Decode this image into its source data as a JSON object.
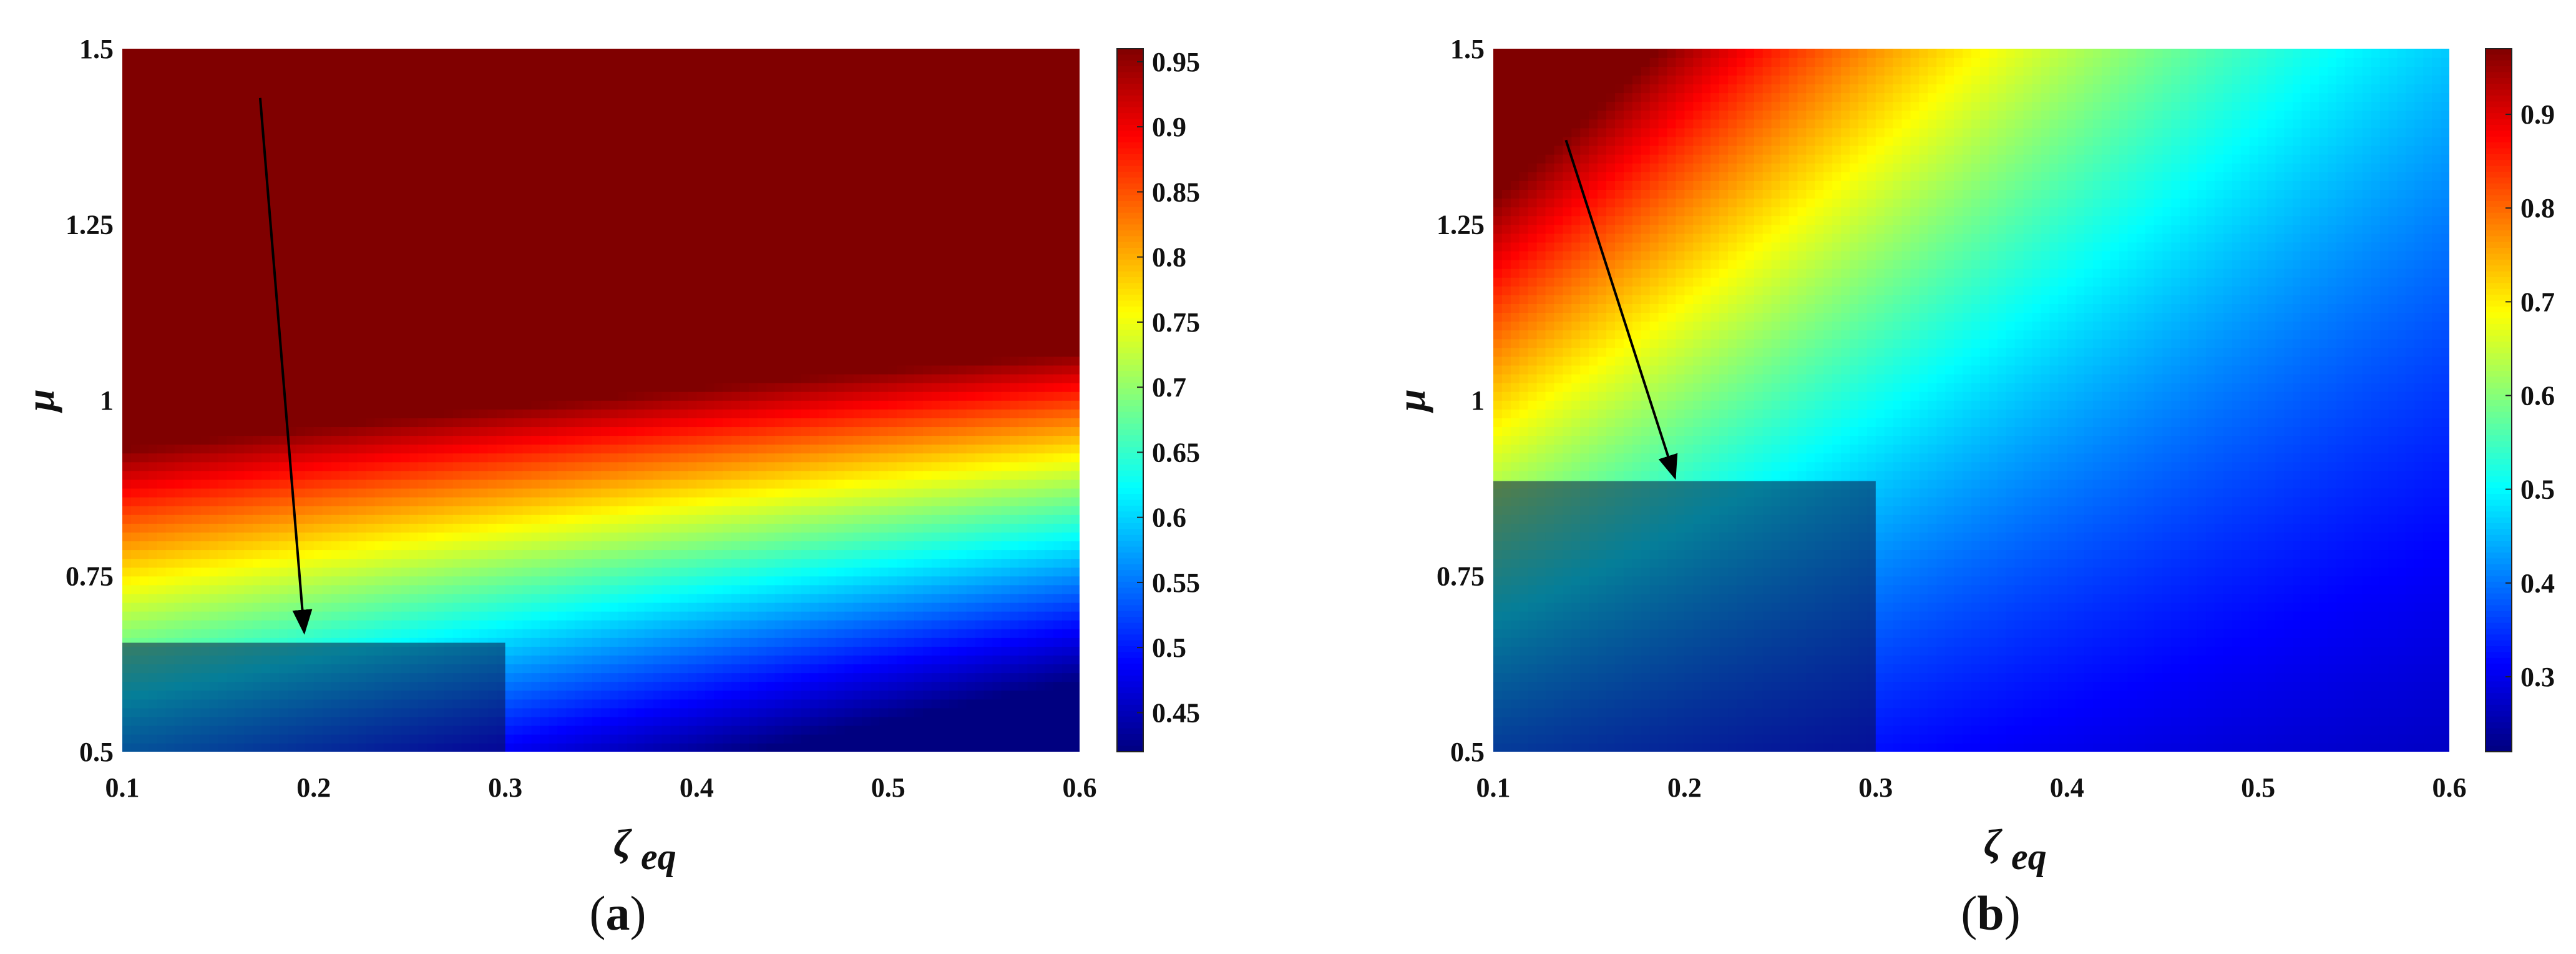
{
  "chart_data": [
    {
      "type": "heatmap",
      "panel_label": "a",
      "x_ticks": [
        "0.1",
        "0.2",
        "0.3",
        "0.4",
        "0.5",
        "0.6"
      ],
      "y_ticks": [
        "0.5",
        "0.75",
        "1",
        "1.25",
        "1.5"
      ],
      "xlim": [
        0.1,
        0.6
      ],
      "ylim": [
        0.5,
        1.5
      ],
      "xlabel_main": "ζ",
      "xlabel_sub": "eq",
      "ylabel": "μ",
      "colorbar": {
        "range": [
          0.42,
          0.96
        ],
        "ticks": [
          "0.45",
          "0.5",
          "0.55",
          "0.6",
          "0.65",
          "0.7",
          "0.75",
          "0.8",
          "0.85",
          "0.9",
          "0.95"
        ],
        "colormap": "jet"
      },
      "field": {
        "a": 0.63,
        "b": 0.26,
        "c": 0.6,
        "vmin": 0.42,
        "vmax": 0.96
      },
      "highlight_region": {
        "x": [
          0.1,
          0.3
        ],
        "y": [
          0.5,
          0.655
        ]
      },
      "arrow": {
        "from": [
          0.172,
          1.43
        ],
        "to": [
          0.195,
          0.67
        ]
      }
    },
    {
      "type": "heatmap",
      "panel_label": "b",
      "x_ticks": [
        "0.1",
        "0.2",
        "0.3",
        "0.4",
        "0.5",
        "0.6"
      ],
      "y_ticks": [
        "0.5",
        "0.75",
        "1",
        "1.25",
        "1.5"
      ],
      "xlim": [
        0.1,
        0.6
      ],
      "ylim": [
        0.5,
        1.5
      ],
      "xlabel_main": "ζ",
      "xlabel_sub": "eq",
      "ylabel": "μ",
      "colorbar": {
        "range": [
          0.22,
          0.97
        ],
        "ticks": [
          "0.3",
          "0.4",
          "0.5",
          "0.6",
          "0.7",
          "0.8",
          "0.9"
        ],
        "colormap": "jet"
      },
      "field": {
        "a": 0.59,
        "b": 0.43,
        "c": 2.8,
        "vmin": 0.22,
        "vmax": 0.97
      },
      "highlight_region": {
        "x": [
          0.1,
          0.3
        ],
        "y": [
          0.5,
          0.885
        ]
      },
      "arrow": {
        "from": [
          0.138,
          1.37
        ],
        "to": [
          0.195,
          0.89
        ]
      }
    }
  ]
}
